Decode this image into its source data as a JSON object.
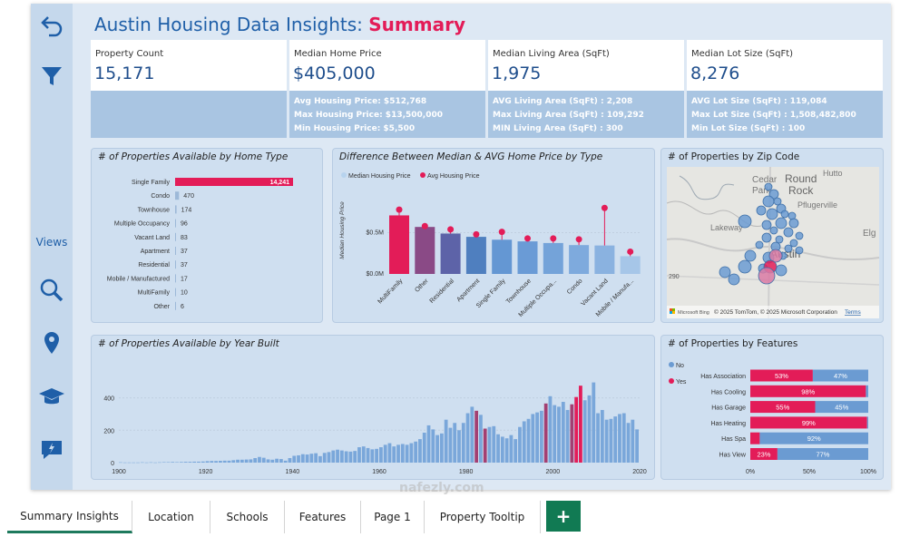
{
  "sidebar": {
    "views_label": "Views"
  },
  "header": {
    "title_main": "Austin Housing Data Insights: ",
    "title_accent": "Summary"
  },
  "kpis": [
    {
      "label": "Property Count",
      "value": "15,171",
      "rows": []
    },
    {
      "label": "Median Home Price",
      "value": "$405,000",
      "rows": [
        "Avg Housing Price: $512,768",
        "Max Housing Price: $13,500,000",
        "Min Housing Price: $5,500"
      ]
    },
    {
      "label": "Median Living Area (SqFt)",
      "value": "1,975",
      "rows": [
        "AVG Living Area (SqFt) : 2,208",
        "Max Living Area (SqFt) : 109,292",
        "MIN Living Area (SqFt) : 300"
      ]
    },
    {
      "label": "Median Lot Size (SqFt)",
      "value": "8,276",
      "rows": [
        "AVG Lot Size (SqFt) : 119,084",
        "Max Lot Size (SqFt) : 1,508,482,800",
        "Min Lot Size (SqFt) : 100"
      ]
    }
  ],
  "panels": {
    "home_type": "# of Properties Available by Home Type",
    "median_avg": "Difference Between Median & AVG Home Price by Type",
    "zip": "# of Properties by Zip Code",
    "year_built": "# of Properties Available by Year Built",
    "features": "# of Properties by Features"
  },
  "map": {
    "labels": [
      "Cedar",
      "Park",
      "Round",
      "Rock",
      "Hutto",
      "Pflugerville",
      "Lakeway",
      "Elg",
      "290",
      "Austin"
    ],
    "attribution": "© 2025 TomTom, © 2025 Microsoft Corporation",
    "terms": "Terms",
    "bing": "Microsoft Bing"
  },
  "chart_data": [
    {
      "type": "bar",
      "orientation": "horizontal",
      "title": "# of Properties Available by Home Type",
      "categories": [
        "Single Family",
        "Condo",
        "Townhouse",
        "Multiple Occupancy",
        "Vacant Land",
        "Apartment",
        "Residential",
        "Mobile / Manufactured",
        "MultiFamily",
        "Other"
      ],
      "values": [
        14241,
        470,
        174,
        96,
        83,
        37,
        37,
        17,
        10,
        6
      ],
      "data_labels": [
        "14,241",
        "470",
        "174",
        "96",
        "83",
        "37",
        "37",
        "17",
        "10",
        "6"
      ],
      "highlight_color": "#e31c58",
      "bar_color": "#9db9d8"
    },
    {
      "type": "bar",
      "title": "Difference Between Median & AVG Home Price by Type",
      "ylabel": "Median Housing Price",
      "categories": [
        "MultiFamily",
        "Other",
        "Residential",
        "Apartment",
        "Single Family",
        "Townhouse",
        "Multiple Occupa...",
        "Condo",
        "Vacant Land",
        "Mobile / Manufa..."
      ],
      "series": [
        {
          "name": "Median Housing Price",
          "values": [
            710000,
            570000,
            490000,
            450000,
            415000,
            395000,
            375000,
            350000,
            345000,
            215000
          ]
        },
        {
          "name": "Avg Housing Price",
          "values": [
            780000,
            580000,
            540000,
            480000,
            510000,
            430000,
            430000,
            420000,
            800000,
            270000
          ]
        }
      ],
      "bar_colors": [
        "#e31c58",
        "#8a4a86",
        "#5d63a8",
        "#4f7fbf",
        "#6497d3",
        "#6a9bd6",
        "#74a3d9",
        "#7eaadd",
        "#8ab2e0",
        "#a6c6e8"
      ],
      "ytick_labels": [
        "$0.0M",
        "$0.5M"
      ],
      "ylim": [
        0,
        1100000
      ],
      "legend": [
        "Median Housing Price",
        "Avg Housing Price"
      ]
    },
    {
      "type": "bar",
      "title": "# of Properties Available by Year Built",
      "x_start": 1900,
      "x_end": 2020,
      "xtick_labels": [
        "1900",
        "1920",
        "1940",
        "1960",
        "1980",
        "2000",
        "2020"
      ],
      "ytick_labels": [
        "0",
        "200",
        "400"
      ],
      "ylim": [
        0,
        560
      ],
      "values": [
        2,
        1,
        1,
        1,
        1,
        2,
        1,
        2,
        1,
        2,
        3,
        3,
        4,
        3,
        4,
        5,
        5,
        6,
        6,
        7,
        9,
        10,
        10,
        11,
        12,
        12,
        15,
        18,
        18,
        19,
        20,
        28,
        35,
        30,
        20,
        18,
        24,
        22,
        12,
        28,
        42,
        45,
        52,
        50,
        55,
        58,
        40,
        60,
        65,
        75,
        80,
        75,
        70,
        68,
        72,
        95,
        100,
        90,
        82,
        85,
        95,
        110,
        120,
        100,
        110,
        115,
        110,
        120,
        130,
        145,
        185,
        230,
        205,
        170,
        180,
        265,
        215,
        245,
        200,
        245,
        305,
        345,
        320,
        295,
        210,
        220,
        225,
        175,
        160,
        150,
        170,
        145,
        220,
        255,
        270,
        300,
        310,
        320,
        365,
        410,
        355,
        345,
        375,
        325,
        360,
        405,
        475,
        385,
        415,
        495,
        305,
        325,
        265,
        270,
        285,
        300,
        305,
        245,
        265,
        205
      ]
    },
    {
      "type": "bar",
      "orientation": "horizontal",
      "stacked": true,
      "title": "# of Properties by Features",
      "categories": [
        "Has Association",
        "Has Cooling",
        "Has Garage",
        "Has Heating",
        "Has Spa",
        "Has View"
      ],
      "series": [
        {
          "name": "Yes",
          "values": [
            53,
            98,
            55,
            99,
            8,
            23
          ],
          "labels": [
            "53%",
            "98%",
            "55%",
            "99%",
            "",
            "23%"
          ]
        },
        {
          "name": "No",
          "values": [
            47,
            2,
            45,
            1,
            92,
            77
          ],
          "labels": [
            "47%",
            "",
            "45%",
            "",
            "92%",
            "77%"
          ]
        }
      ],
      "xtick_labels": [
        "0%",
        "50%",
        "100%"
      ],
      "legend": [
        "No",
        "Yes"
      ],
      "colors": {
        "Yes": "#e31c58",
        "No": "#6b9bd2"
      }
    }
  ],
  "tabs": [
    "Summary Insights",
    "Location",
    "Schools",
    "Features",
    "Page 1",
    "Property Tooltip"
  ],
  "add_tab": "+",
  "watermark": "nafezly.com"
}
